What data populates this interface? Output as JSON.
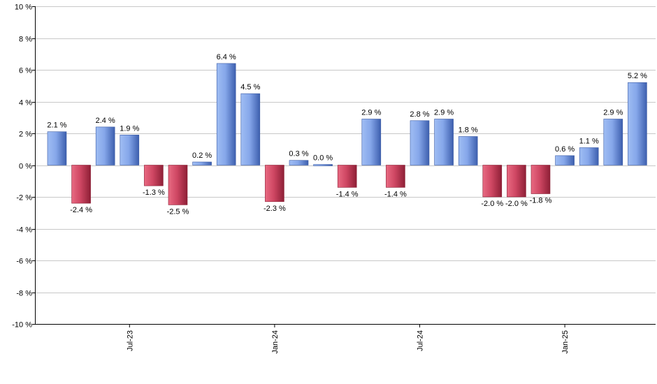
{
  "chart_data": {
    "type": "bar",
    "title": "",
    "xlabel": "",
    "ylabel": "",
    "ylim": [
      -10,
      10
    ],
    "yticks": [
      10,
      8,
      6,
      4,
      2,
      0,
      -2,
      -4,
      -6,
      -8,
      -10
    ],
    "ytick_labels": [
      "10 %",
      "8 %",
      "6 %",
      "4 %",
      "2 %",
      "0 %",
      "-2 %",
      "-4 %",
      "-6 %",
      "-8 %",
      "-10 %"
    ],
    "grid": true,
    "value_suffix": " %",
    "x_tick_labels": [
      {
        "label": "Jul-23",
        "index": 3
      },
      {
        "label": "Jan-24",
        "index": 9
      },
      {
        "label": "Jul-24",
        "index": 15
      },
      {
        "label": "Jan-25",
        "index": 21
      }
    ],
    "values": [
      2.1,
      -2.4,
      2.4,
      1.9,
      -1.3,
      -2.5,
      0.2,
      6.4,
      4.5,
      -2.3,
      0.3,
      0.0,
      -1.4,
      2.9,
      -1.4,
      2.8,
      2.9,
      1.8,
      -2.0,
      -2.0,
      -1.8,
      0.6,
      1.1,
      2.9,
      5.2
    ],
    "value_labels": [
      "2.1 %",
      "-2.4 %",
      "2.4 %",
      "1.9 %",
      "-1.3 %",
      "-2.5 %",
      "0.2 %",
      "6.4 %",
      "4.5 %",
      "-2.3 %",
      "0.3 %",
      "0.0 %",
      "-1.4 %",
      "2.9 %",
      "-1.4 %",
      "2.8 %",
      "2.9 %",
      "1.8 %",
      "-2.0 %",
      "-2.0 %",
      "-1.8 %",
      "0.6 %",
      "1.1 %",
      "2.9 %",
      "5.2 %"
    ],
    "colors": {
      "positive": "#7a9fe6",
      "negative": "#c83a55",
      "grid": "#c8c8c8"
    }
  }
}
